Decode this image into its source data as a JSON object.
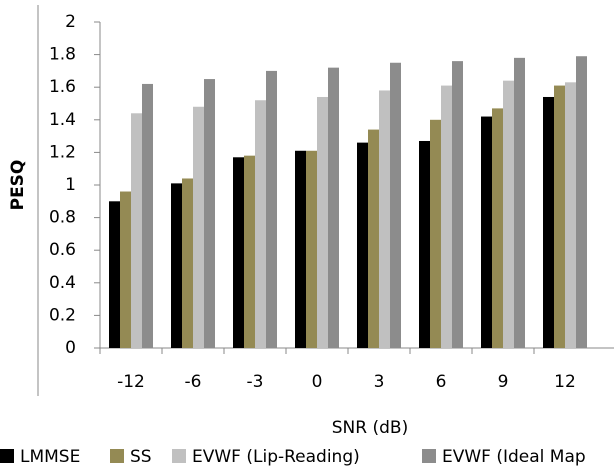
{
  "chart_data": {
    "type": "bar",
    "x_label": "SNR (dB)",
    "y_label": "PESQ",
    "categories": [
      "-12",
      "-6",
      "-3",
      "0",
      "3",
      "6",
      "9",
      "12"
    ],
    "series": [
      {
        "name": "LMMSE",
        "color": "#000000",
        "values": [
          0.9,
          1.01,
          1.17,
          1.21,
          1.26,
          1.27,
          1.42,
          1.54
        ]
      },
      {
        "name": "SS",
        "color": "#948a54",
        "values": [
          0.96,
          1.04,
          1.18,
          1.21,
          1.34,
          1.4,
          1.47,
          1.61
        ]
      },
      {
        "name": "EVWF (Lip-Reading)",
        "color": "#c0c0c0",
        "values": [
          1.44,
          1.48,
          1.52,
          1.54,
          1.58,
          1.61,
          1.64,
          1.63
        ]
      },
      {
        "name": "EVWF (Ideal Map",
        "color": "#8c8c8c",
        "values": [
          1.62,
          1.65,
          1.7,
          1.72,
          1.75,
          1.76,
          1.78,
          1.79
        ]
      }
    ],
    "ylim": [
      0,
      2
    ],
    "yticks": [
      0,
      0.2,
      0.4,
      0.6,
      0.8,
      1,
      1.2,
      1.4,
      1.6,
      1.8,
      2
    ],
    "grid": false
  }
}
